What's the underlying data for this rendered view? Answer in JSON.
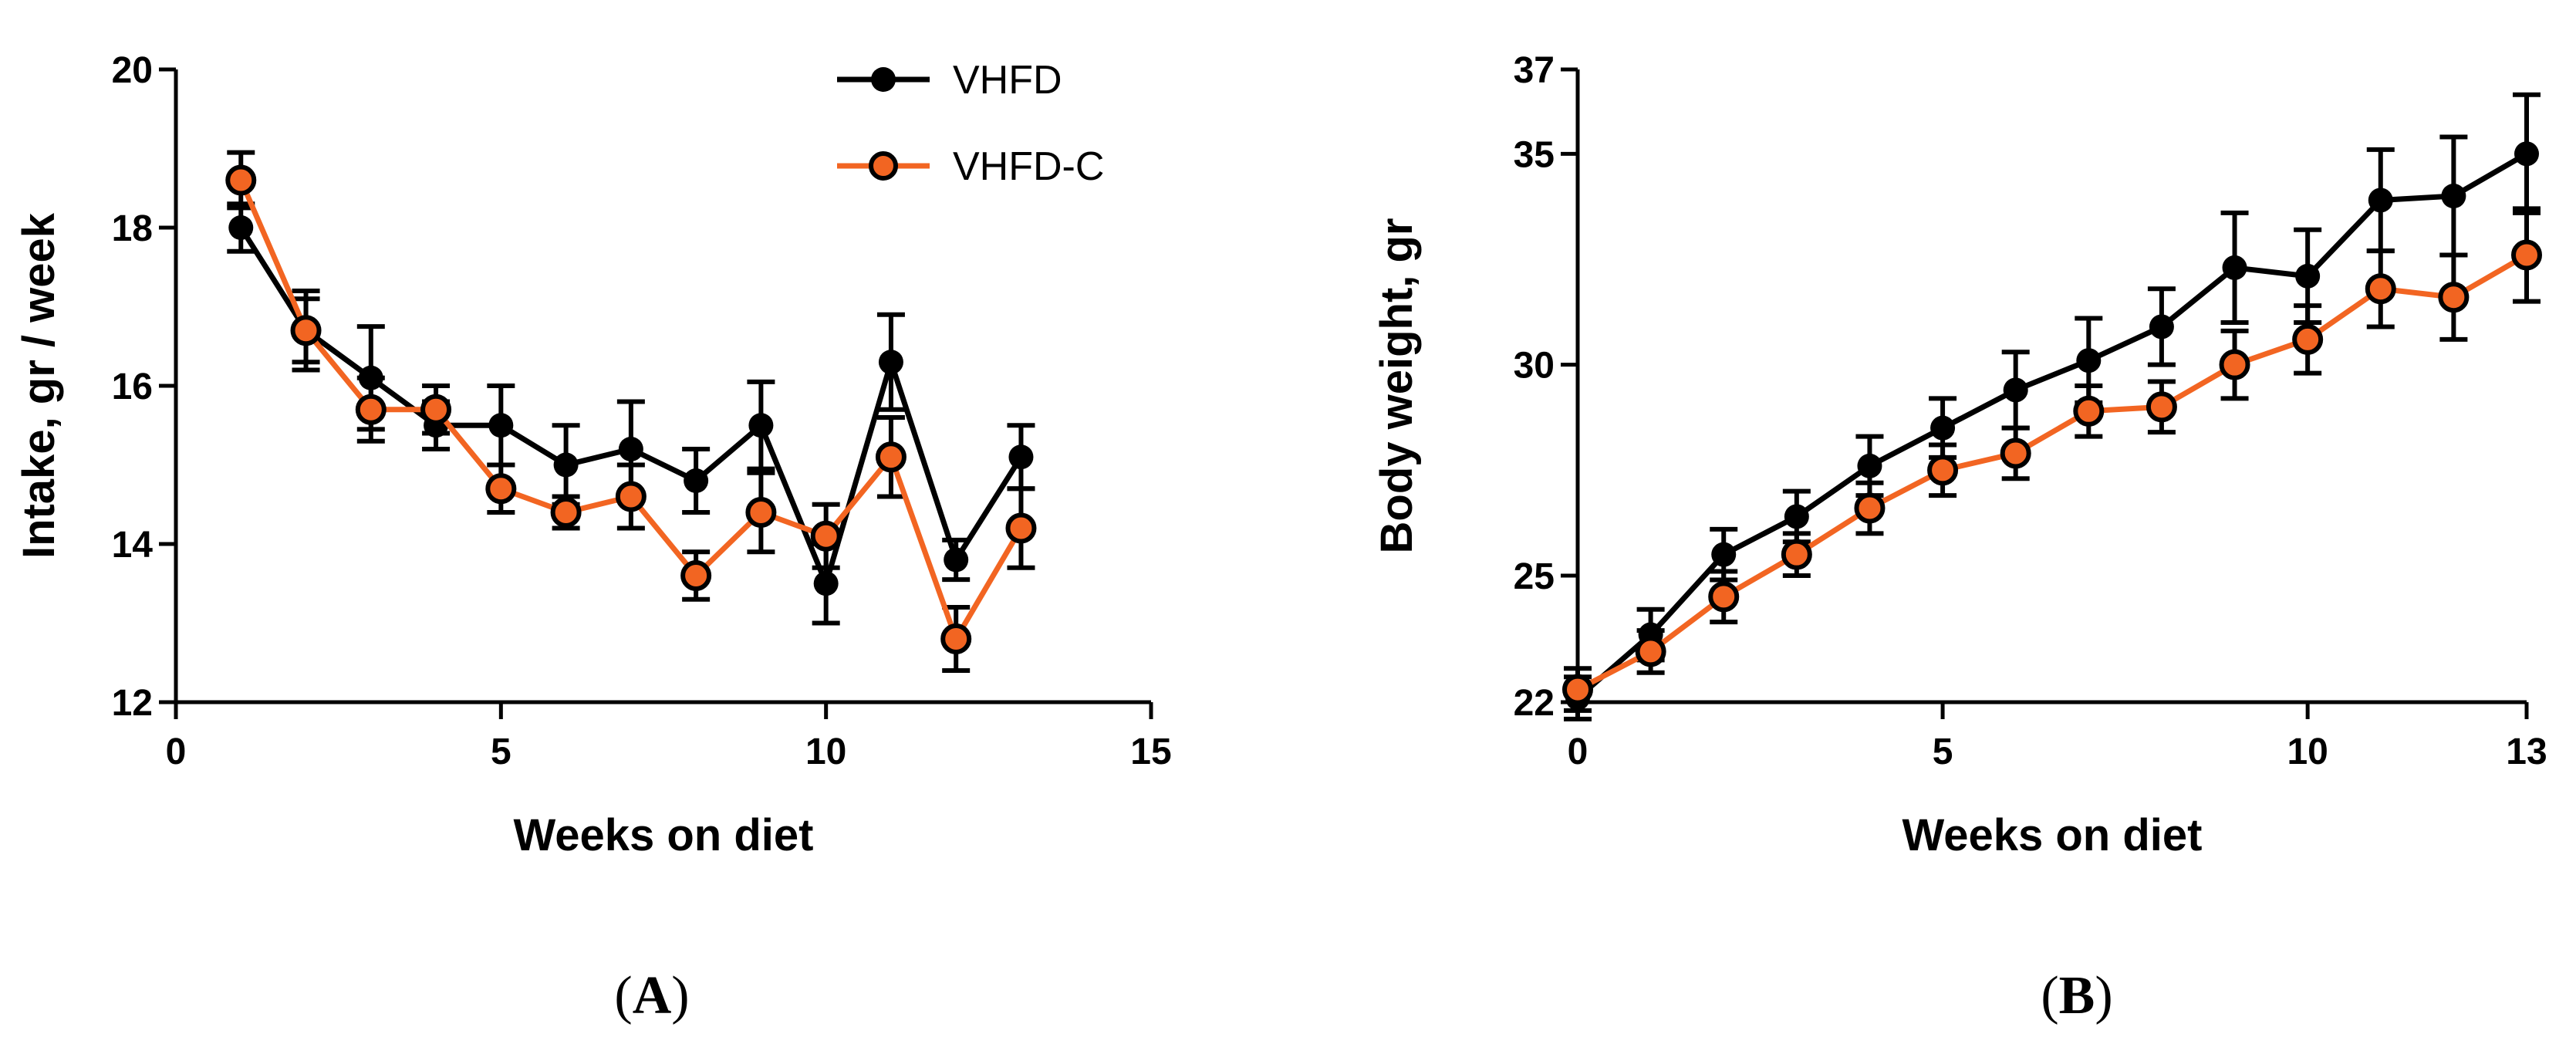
{
  "legend": [
    "VHFD",
    "VHFD-C"
  ],
  "colors": {
    "VHFD": "#000000",
    "VHFD-C": "#f26522",
    "axis": "#000000",
    "marker_fill_VHFD-C": "#f26522"
  },
  "panel_labels": {
    "A": "A",
    "B": "B",
    "open": "(",
    "close": ")"
  },
  "chart_data": [
    {
      "id": "A",
      "type": "line",
      "title": "",
      "xlabel": "Weeks on diet",
      "ylabel": "Intake, gr / week",
      "xlim": [
        0,
        15
      ],
      "ylim": [
        12,
        20
      ],
      "xticks": [
        0,
        5,
        10,
        15
      ],
      "yticks": [
        12,
        14,
        16,
        18,
        20
      ],
      "grid": false,
      "legend_position": "top-right",
      "x": [
        1,
        2,
        3,
        4,
        5,
        6,
        7,
        8,
        9,
        10,
        11,
        12,
        13
      ],
      "series": [
        {
          "name": "VHFD",
          "values": [
            18.0,
            16.7,
            16.1,
            15.5,
            15.5,
            15.0,
            15.2,
            14.8,
            15.5,
            13.5,
            16.3,
            13.8,
            15.1
          ],
          "errors": [
            0.3,
            0.5,
            0.65,
            0.3,
            0.5,
            0.5,
            0.6,
            0.4,
            0.55,
            0.5,
            0.6,
            0.25,
            0.4
          ]
        },
        {
          "name": "VHFD-C",
          "values": [
            18.6,
            16.7,
            15.7,
            15.7,
            14.7,
            14.4,
            14.6,
            13.6,
            14.4,
            14.1,
            15.1,
            12.8,
            14.2
          ],
          "errors": [
            0.35,
            0.4,
            0.4,
            0.3,
            0.3,
            0.2,
            0.4,
            0.3,
            0.5,
            0.4,
            0.5,
            0.4,
            0.5
          ]
        }
      ]
    },
    {
      "id": "B",
      "type": "line",
      "title": "",
      "xlabel": "Weeks on diet",
      "ylabel": "Body weight, gr",
      "xlim": [
        0,
        13
      ],
      "ylim": [
        22,
        37
      ],
      "xticks": [
        0,
        5,
        10,
        13
      ],
      "yticks": [
        22,
        25,
        30,
        35,
        37
      ],
      "grid": false,
      "legend_position": "none",
      "x": [
        0,
        1,
        2,
        3,
        4,
        5,
        6,
        7,
        8,
        9,
        10,
        11,
        12,
        13
      ],
      "series": [
        {
          "name": "VHFD",
          "values": [
            22.1,
            23.6,
            25.5,
            26.4,
            27.6,
            28.5,
            29.4,
            30.1,
            30.9,
            32.3,
            32.1,
            33.9,
            34.0,
            35.0
          ],
          "errors": [
            0.5,
            0.6,
            0.6,
            0.6,
            0.7,
            0.7,
            0.9,
            1.0,
            0.9,
            1.3,
            1.1,
            1.2,
            1.4,
            1.4
          ]
        },
        {
          "name": "VHFD-C",
          "values": [
            22.3,
            23.2,
            24.5,
            25.5,
            26.6,
            27.5,
            27.9,
            28.9,
            29.0,
            30.0,
            30.6,
            31.8,
            31.6,
            32.6
          ],
          "errors": [
            0.5,
            0.5,
            0.6,
            0.5,
            0.6,
            0.6,
            0.6,
            0.6,
            0.6,
            0.8,
            0.8,
            0.9,
            1.0,
            1.1
          ]
        }
      ]
    }
  ]
}
